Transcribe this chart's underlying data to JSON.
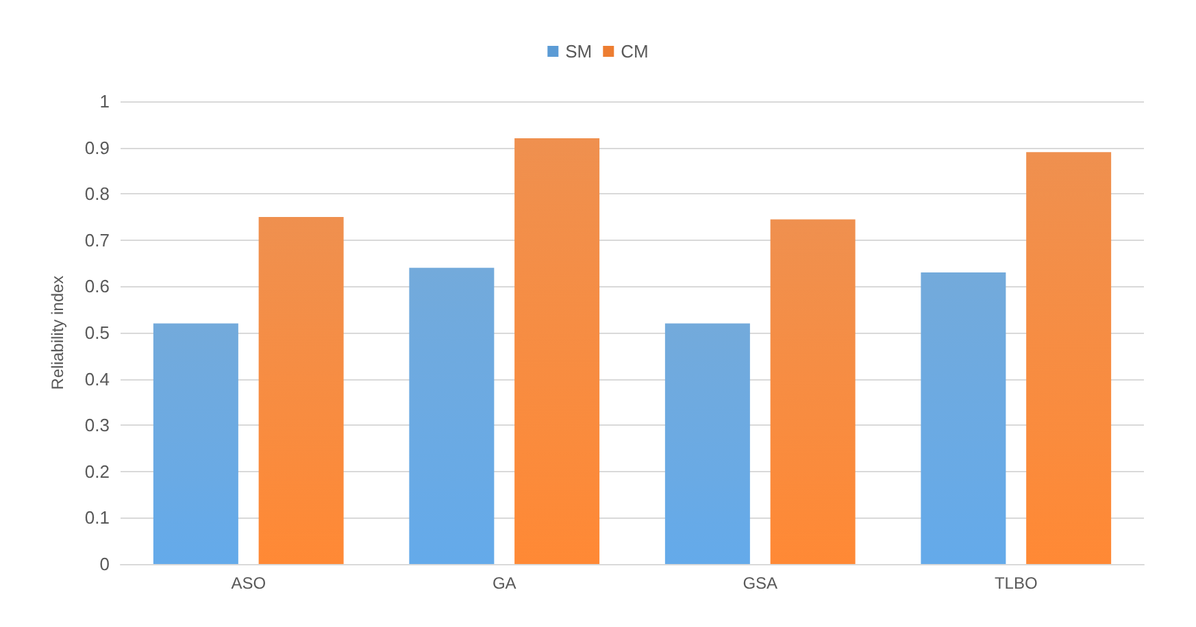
{
  "chart_data": {
    "type": "bar",
    "ylabel": "Reliability index",
    "categories": [
      "ASO",
      "GA",
      "GSA",
      "TLBO"
    ],
    "series": [
      {
        "name": "SM",
        "color": "#5b9bd5",
        "values": [
          0.52,
          0.64,
          0.52,
          0.63
        ]
      },
      {
        "name": "CM",
        "color": "#ed7d31",
        "values": [
          0.75,
          0.92,
          0.745,
          0.89
        ]
      }
    ],
    "ylim": [
      0,
      1
    ],
    "yticks": [
      0,
      0.1,
      0.2,
      0.3,
      0.4,
      0.5,
      0.6,
      0.7,
      0.8,
      0.9,
      1
    ],
    "grid": "y",
    "legend": "top"
  }
}
